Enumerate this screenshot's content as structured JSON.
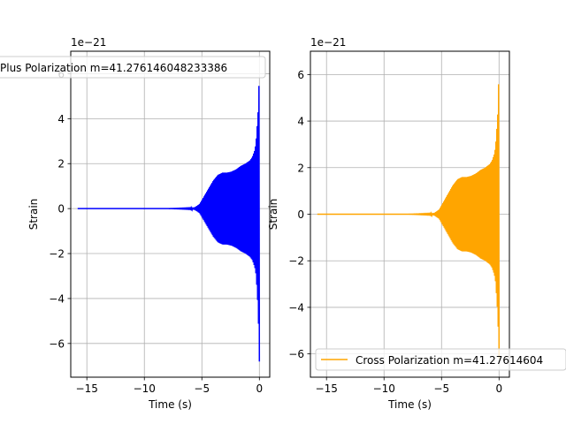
{
  "chart_data": [
    {
      "type": "line",
      "title": "",
      "xlabel": "Time (s)",
      "ylabel": "Strain",
      "offset_label": "1e−21",
      "xlim": [
        -16.4,
        0.9
      ],
      "ylim": [
        -7.5,
        7.0
      ],
      "xticks": [
        -15,
        -10,
        -5,
        0
      ],
      "xtick_labels": [
        "−15",
        "−10",
        "−5",
        "0"
      ],
      "yticks": [
        -6,
        -4,
        -2,
        0,
        2,
        4,
        6
      ],
      "ytick_labels": [
        "−6",
        "−4",
        "−2",
        "0",
        "2",
        "4",
        "6"
      ],
      "grid": true,
      "legend_position": "top-left",
      "series": [
        {
          "name": "Plus Polarization m=41.276146048233386",
          "color": "#0000ff",
          "x_range": [
            -15.8,
            0.0
          ],
          "envelope": {
            "x": [
              -15.8,
              -8.0,
              -6.0,
              -5.6,
              -5.2,
              -4.8,
              -4.4,
              -4.0,
              -3.6,
              -3.2,
              -2.8,
              -2.4,
              -2.0,
              -1.6,
              -1.2,
              -0.8,
              -0.6,
              -0.4,
              -0.3,
              -0.2,
              -0.1,
              0.0
            ],
            "upper": [
              0.0,
              0.0,
              0.02,
              0.06,
              0.2,
              0.55,
              0.9,
              1.25,
              1.5,
              1.6,
              1.6,
              1.65,
              1.75,
              1.9,
              2.0,
              2.15,
              2.3,
              2.6,
              2.9,
              3.6,
              4.4,
              6.1
            ],
            "lower": [
              0.0,
              0.0,
              -0.02,
              -0.06,
              -0.2,
              -0.55,
              -0.9,
              -1.25,
              -1.5,
              -1.6,
              -1.6,
              -1.65,
              -1.75,
              -1.9,
              -2.0,
              -2.15,
              -2.3,
              -2.6,
              -2.9,
              -3.6,
              -4.6,
              -6.8
            ]
          }
        }
      ]
    },
    {
      "type": "line",
      "title": "",
      "xlabel": "Time (s)",
      "ylabel": "Strain",
      "offset_label": "1e−21",
      "xlim": [
        -16.4,
        0.9
      ],
      "ylim": [
        -7.0,
        7.0
      ],
      "xticks": [
        -15,
        -10,
        -5,
        0
      ],
      "xtick_labels": [
        "−15",
        "−10",
        "−5",
        "0"
      ],
      "yticks": [
        -6,
        -4,
        -2,
        0,
        2,
        4,
        6
      ],
      "ytick_labels": [
        "−6",
        "−4",
        "−2",
        "0",
        "2",
        "4",
        "6"
      ],
      "grid": true,
      "legend_position": "lower-left",
      "series": [
        {
          "name": "Cross Polarization m=41.27614604",
          "color": "#ffa500",
          "x_range": [
            -15.8,
            0.0
          ],
          "envelope": {
            "x": [
              -15.8,
              -8.0,
              -6.0,
              -5.6,
              -5.2,
              -4.8,
              -4.4,
              -4.0,
              -3.6,
              -3.2,
              -2.8,
              -2.4,
              -2.0,
              -1.6,
              -1.2,
              -0.8,
              -0.6,
              -0.4,
              -0.3,
              -0.2,
              -0.1,
              0.0
            ],
            "upper": [
              0.0,
              0.0,
              0.02,
              0.06,
              0.2,
              0.55,
              0.9,
              1.25,
              1.5,
              1.6,
              1.6,
              1.65,
              1.75,
              1.9,
              2.0,
              2.15,
              2.3,
              2.6,
              2.9,
              3.6,
              4.4,
              6.3
            ],
            "lower": [
              0.0,
              0.0,
              -0.02,
              -0.06,
              -0.2,
              -0.55,
              -0.9,
              -1.25,
              -1.5,
              -1.6,
              -1.6,
              -1.65,
              -1.75,
              -1.9,
              -2.0,
              -2.15,
              -2.3,
              -2.6,
              -2.9,
              -3.6,
              -4.4,
              -6.2
            ]
          }
        }
      ]
    }
  ]
}
